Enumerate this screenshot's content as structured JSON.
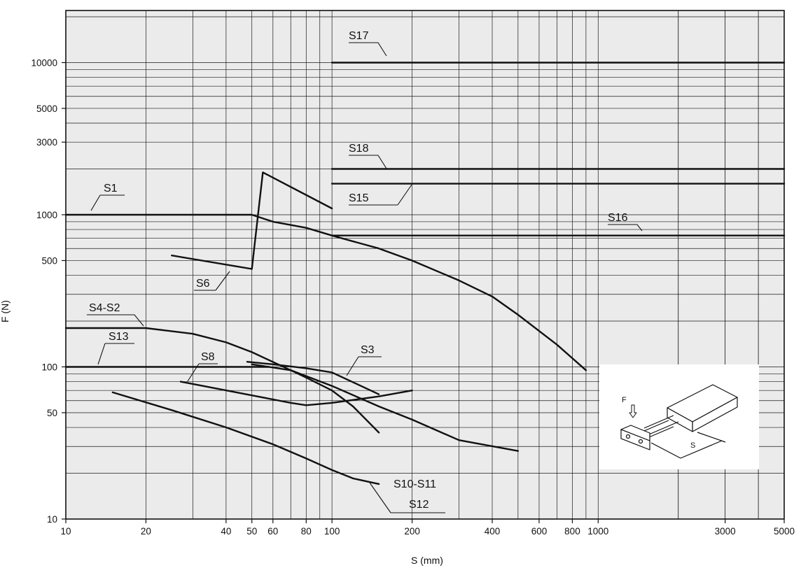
{
  "chart_data": {
    "type": "line",
    "xscale": "log",
    "yscale": "log",
    "xlim": [
      10,
      5000
    ],
    "ylim": [
      10,
      22000
    ],
    "xlabel": "S (mm)",
    "ylabel": "F (N)",
    "grid": true,
    "x_ticks": [
      10,
      20,
      40,
      50,
      60,
      80,
      100,
      200,
      400,
      600,
      800,
      1000,
      3000,
      5000
    ],
    "x_tick_labels": [
      "10",
      "20",
      "40",
      "50",
      "60",
      "80",
      "100",
      "200",
      "400",
      "600",
      "800",
      "1000",
      "3000",
      "5000"
    ],
    "y_ticks": [
      10,
      50,
      100,
      500,
      1000,
      3000,
      5000,
      10000
    ],
    "y_tick_labels": [
      "10",
      "50",
      "100",
      "500",
      "1000",
      "3000",
      "5000",
      "10000"
    ],
    "series": [
      {
        "name": "S17",
        "x": [
          100,
          5000
        ],
        "y": [
          10000,
          10000
        ]
      },
      {
        "name": "S18",
        "x": [
          100,
          5000
        ],
        "y": [
          2000,
          2000
        ]
      },
      {
        "name": "S15",
        "x": [
          100,
          5000
        ],
        "y": [
          1600,
          1600
        ]
      },
      {
        "name": "S16",
        "x": [
          100,
          5000
        ],
        "y": [
          730,
          730
        ]
      },
      {
        "name": "S1",
        "x": [
          10,
          50,
          60,
          80,
          100,
          150,
          200,
          300,
          400,
          500,
          700,
          900
        ],
        "y": [
          1000,
          1000,
          900,
          820,
          730,
          600,
          500,
          370,
          290,
          220,
          140,
          95
        ]
      },
      {
        "name": "S6",
        "x": [
          25,
          50,
          55,
          100
        ],
        "y": [
          540,
          440,
          1900,
          1100
        ]
      },
      {
        "name": "S4-S2",
        "x": [
          10,
          20,
          30,
          40,
          50,
          70,
          100,
          150,
          200,
          300,
          500
        ],
        "y": [
          180,
          180,
          165,
          145,
          125,
          95,
          75,
          55,
          45,
          33,
          28
        ]
      },
      {
        "name": "S13",
        "x": [
          10,
          58
        ],
        "y": [
          100,
          100
        ]
      },
      {
        "name": "S3",
        "x": [
          48,
          60,
          80,
          100,
          150
        ],
        "y": [
          108,
          104,
          98,
          92,
          66
        ]
      },
      {
        "name": "S8",
        "x": [
          27,
          50,
          70,
          80,
          100,
          150,
          200
        ],
        "y": [
          80,
          65,
          58,
          56,
          58,
          64,
          70
        ]
      },
      {
        "name": "S10-S11",
        "x": [
          50,
          70,
          80,
          100,
          120,
          150
        ],
        "y": [
          104,
          95,
          85,
          70,
          55,
          37
        ]
      },
      {
        "name": "S12",
        "x": [
          15,
          25,
          40,
          60,
          80,
          100,
          120,
          150
        ],
        "y": [
          68,
          52,
          40,
          31,
          25,
          21,
          18.5,
          17
        ]
      }
    ],
    "labels": [
      "S17",
      "S18",
      "S15",
      "S16",
      "S1",
      "S6",
      "S4-S2",
      "S13",
      "S8",
      "S3",
      "S10-S11",
      "S12"
    ],
    "inset_labels": {
      "force": "F",
      "stroke": "S"
    },
    "colors": {
      "background": "#ebebeb",
      "grid": "#1a1a1a",
      "curve": "#111111",
      "inset": "#ffffff"
    }
  }
}
